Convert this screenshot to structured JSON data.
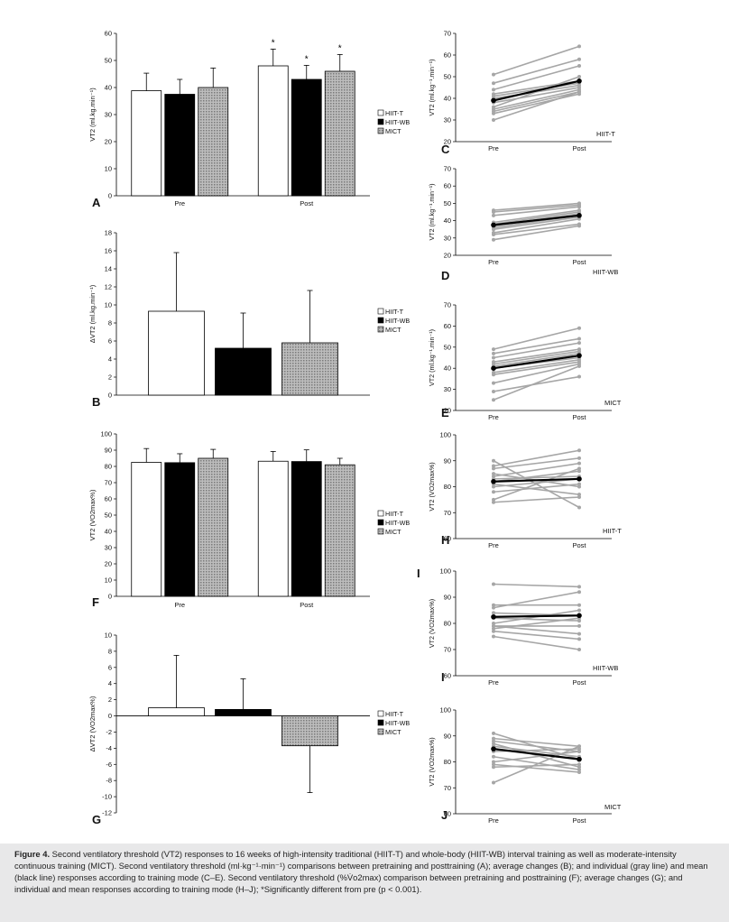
{
  "colors": {
    "hiit_t": "#ffffff",
    "hiit_wb": "#000000",
    "mict": "#a9a9a9",
    "individual": "#a6a6a6",
    "mean": "#000000",
    "caption_bg": "#e8e8e9"
  },
  "chart_data": [
    {
      "id": "A",
      "panel_label": "A",
      "type": "bar",
      "categories": [
        "Pre",
        "Post"
      ],
      "series": [
        {
          "name": "HIIT-T",
          "values": [
            38.8,
            48.0
          ],
          "errors": [
            6.5,
            6.2
          ]
        },
        {
          "name": "HIIT-WB",
          "values": [
            37.5,
            43.0
          ],
          "errors": [
            5.5,
            5.2
          ]
        },
        {
          "name": "MICT",
          "values": [
            40.0,
            46.0
          ],
          "errors": [
            7.2,
            6.2
          ]
        }
      ],
      "ylabel": "VT2 (ml.kg.min⁻¹)",
      "ylim": [
        0,
        60
      ],
      "yticks": [
        0,
        10,
        20,
        30,
        40,
        50,
        60
      ],
      "annotations": [
        {
          "category": "Post",
          "series": "HIIT-T",
          "text": "*"
        },
        {
          "category": "Post",
          "series": "HIIT-WB",
          "text": "*"
        },
        {
          "category": "Post",
          "series": "MICT",
          "text": "*"
        }
      ],
      "legend": [
        "HIIT-T",
        "HIIT-WB",
        "MICT"
      ],
      "legend_position": "right"
    },
    {
      "id": "B",
      "panel_label": "B",
      "type": "bar",
      "categories": [
        ""
      ],
      "series": [
        {
          "name": "HIIT-T",
          "values": [
            9.3
          ],
          "errors": [
            6.5
          ]
        },
        {
          "name": "HIIT-WB",
          "values": [
            5.2
          ],
          "errors": [
            3.9
          ]
        },
        {
          "name": "MICT",
          "values": [
            5.8
          ],
          "errors": [
            5.8
          ]
        }
      ],
      "ylabel": "ΔVT2 (ml.kg.min⁻¹)",
      "ylim": [
        0,
        18
      ],
      "yticks": [
        0,
        2,
        4,
        6,
        8,
        10,
        12,
        14,
        16,
        18
      ],
      "legend": [
        "HIIT-T",
        "HIIT-WB",
        "MICT"
      ],
      "legend_position": "right"
    },
    {
      "id": "F",
      "panel_label": "F",
      "type": "bar",
      "categories": [
        "Pre",
        "Post"
      ],
      "series": [
        {
          "name": "HIIT-T",
          "values": [
            82.5,
            83.2
          ],
          "errors": [
            8.5,
            6.0
          ]
        },
        {
          "name": "HIIT-WB",
          "values": [
            82.3,
            83.0
          ],
          "errors": [
            5.5,
            7.2
          ]
        },
        {
          "name": "MICT",
          "values": [
            85.0,
            81.0
          ],
          "errors": [
            5.5,
            4.0
          ]
        }
      ],
      "ylabel": "VT2 (VO2max%)",
      "ylim": [
        0,
        100
      ],
      "yticks": [
        0,
        10,
        20,
        30,
        40,
        50,
        60,
        70,
        80,
        90,
        100
      ],
      "legend": [
        "HIIT-T",
        "HIIT-WB",
        "MICT"
      ],
      "legend_position": "right"
    },
    {
      "id": "G",
      "panel_label": "G",
      "type": "bar",
      "categories": [
        ""
      ],
      "series": [
        {
          "name": "HIIT-T",
          "values": [
            1.0
          ],
          "errors": [
            6.5
          ]
        },
        {
          "name": "HIIT-WB",
          "values": [
            0.8
          ],
          "errors": [
            3.8
          ]
        },
        {
          "name": "MICT",
          "values": [
            -3.7
          ],
          "errors": [
            5.8
          ]
        }
      ],
      "ylabel": "ΔVT2 (VO2max%)",
      "ylim": [
        -12,
        10
      ],
      "yticks": [
        -12,
        -10,
        -8,
        -6,
        -4,
        -2,
        0,
        2,
        4,
        6,
        8,
        10
      ],
      "legend": [
        "HIIT-T",
        "HIIT-WB",
        "MICT"
      ],
      "legend_position": "right"
    },
    {
      "id": "C",
      "panel_label": "C",
      "type": "line",
      "x": [
        "Pre",
        "Post"
      ],
      "ylabel": "VT2 (ml.kg⁻¹.min⁻¹)",
      "ylim": [
        20,
        70
      ],
      "yticks": [
        20,
        30,
        40,
        50,
        60,
        70
      ],
      "group_label": "HIIT-T",
      "individuals": [
        [
          51,
          64
        ],
        [
          47,
          58
        ],
        [
          44,
          55
        ],
        [
          42,
          48
        ],
        [
          41,
          47
        ],
        [
          40,
          46
        ],
        [
          38,
          45
        ],
        [
          36,
          50
        ],
        [
          35,
          44
        ],
        [
          34,
          43
        ],
        [
          33,
          42
        ],
        [
          30,
          43
        ]
      ],
      "mean": [
        39,
        48
      ]
    },
    {
      "id": "D",
      "panel_label": "D",
      "type": "line",
      "x": [
        "Pre",
        "Post"
      ],
      "ylabel": "VT2 (ml.kg⁻¹.min⁻¹)",
      "ylim": [
        20,
        70
      ],
      "yticks": [
        20,
        30,
        40,
        50,
        60,
        70
      ],
      "group_label": "HIIT-WB",
      "individuals": [
        [
          46,
          50
        ],
        [
          45,
          49
        ],
        [
          43,
          48
        ],
        [
          39,
          46
        ],
        [
          38,
          45
        ],
        [
          37,
          44
        ],
        [
          36,
          43
        ],
        [
          35,
          42
        ],
        [
          33,
          41
        ],
        [
          32,
          38
        ],
        [
          29,
          37
        ]
      ],
      "mean": [
        37.5,
        43
      ]
    },
    {
      "id": "E",
      "panel_label": "E",
      "type": "line",
      "x": [
        "Pre",
        "Post"
      ],
      "ylabel": "VT2 (ml.kg⁻¹.min⁻¹)",
      "ylim": [
        20,
        70
      ],
      "yticks": [
        20,
        30,
        40,
        50,
        60,
        70
      ],
      "group_label": "MICT",
      "individuals": [
        [
          49,
          59
        ],
        [
          47,
          54
        ],
        [
          45,
          52
        ],
        [
          43,
          49
        ],
        [
          42,
          48
        ],
        [
          41,
          47
        ],
        [
          40,
          45
        ],
        [
          38,
          44
        ],
        [
          37,
          43
        ],
        [
          33,
          42
        ],
        [
          29,
          36
        ],
        [
          25,
          41
        ]
      ],
      "mean": [
        40,
        46
      ]
    },
    {
      "id": "H",
      "panel_label": "H",
      "type": "line",
      "x": [
        "Pre",
        "Post"
      ],
      "ylabel": "VT2 (VO2max%)",
      "ylim": [
        60,
        100
      ],
      "yticks": [
        60,
        70,
        80,
        90,
        100
      ],
      "group_label": "HIIT-T",
      "individuals": [
        [
          90,
          72
        ],
        [
          88,
          94
        ],
        [
          87,
          91
        ],
        [
          85,
          80
        ],
        [
          84,
          89
        ],
        [
          83,
          84
        ],
        [
          82,
          86
        ],
        [
          81,
          77
        ],
        [
          80,
          83
        ],
        [
          78,
          81
        ],
        [
          75,
          87
        ],
        [
          74,
          76
        ]
      ],
      "mean": [
        82,
        83
      ]
    },
    {
      "id": "I",
      "panel_label": "I",
      "type": "line",
      "x": [
        "Pre",
        "Post"
      ],
      "ylabel": "VT2 (VO2max%)",
      "ylim": [
        60,
        100
      ],
      "yticks": [
        60,
        70,
        80,
        90,
        100
      ],
      "group_label": "HIIT-WB",
      "individuals": [
        [
          95,
          94
        ],
        [
          87,
          87
        ],
        [
          86,
          92
        ],
        [
          84,
          83
        ],
        [
          82,
          81
        ],
        [
          80,
          85
        ],
        [
          79,
          76
        ],
        [
          79,
          79
        ],
        [
          78,
          82
        ],
        [
          77,
          74
        ],
        [
          75,
          70
        ]
      ],
      "mean": [
        82.5,
        83
      ]
    },
    {
      "id": "J",
      "panel_label": "J",
      "type": "line",
      "x": [
        "Pre",
        "Post"
      ],
      "ylabel": "VT2 (VO2max%)",
      "ylim": [
        60,
        100
      ],
      "yticks": [
        60,
        70,
        80,
        90,
        100
      ],
      "group_label": "MICT",
      "individuals": [
        [
          91,
          81
        ],
        [
          89,
          86
        ],
        [
          88,
          84
        ],
        [
          87,
          78
        ],
        [
          86,
          82
        ],
        [
          84,
          85
        ],
        [
          82,
          77
        ],
        [
          80,
          84
        ],
        [
          79,
          76
        ],
        [
          78,
          79
        ],
        [
          72,
          86
        ]
      ],
      "mean": [
        85,
        81
      ]
    }
  ],
  "side_labels": {
    "upper_I": "I"
  },
  "caption": {
    "label": "Figure 4.",
    "text": " Second ventilatory threshold (VT2) responses to 16 weeks of high-intensity traditional (HIIT-T) and whole-body (HIIT-WB) interval training as well as moderate-intensity continuous training (MICT). Second ventilatory threshold (ml·kg⁻¹·min⁻¹) comparisons between pretraining and posttraining (A); average changes (B); and individual (gray line) and mean (black line) responses according to training mode (C–E). Second ventilatory threshold (%V̇o2max) comparison between pretraining and posttraining (F); average changes (G); and individual and mean responses according to training mode (H–J); *Significantly different from pre (p < 0.001)."
  }
}
